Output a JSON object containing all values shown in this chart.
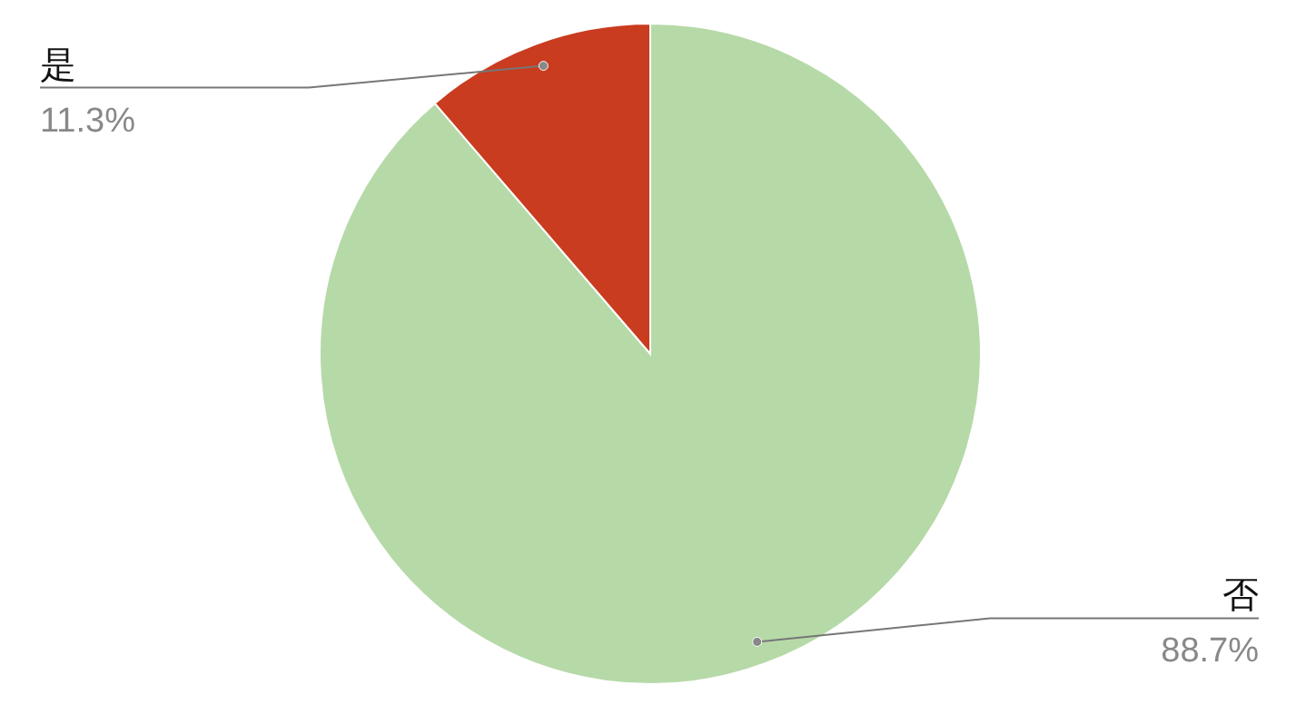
{
  "chart_data": {
    "type": "pie",
    "categories": [
      "否",
      "是"
    ],
    "values": [
      88.7,
      11.3
    ],
    "colors": [
      "#b6d9a8",
      "#c93c1f"
    ],
    "value_labels": [
      "88.7%",
      "11.3%"
    ]
  }
}
